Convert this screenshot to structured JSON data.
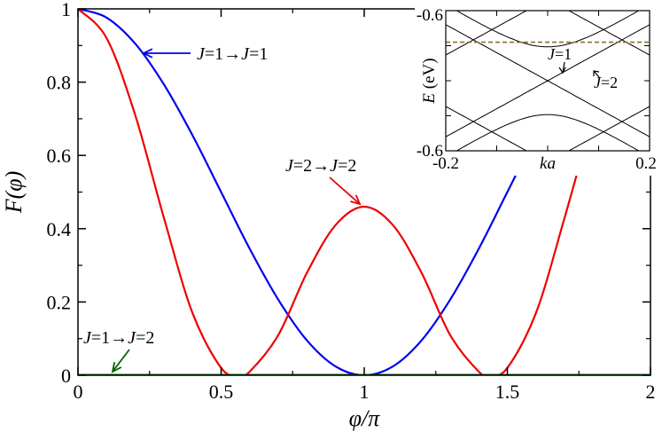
{
  "chart_data": [
    {
      "type": "line",
      "xlabel": "φ/π",
      "ylabel": "F(φ)",
      "xlim": [
        0,
        2
      ],
      "ylim": [
        0,
        1
      ],
      "x_ticks": [
        0,
        0.5,
        1,
        1.5,
        2
      ],
      "x_tick_labels": [
        "0",
        "0.5",
        "1",
        "1.5",
        "2"
      ],
      "y_ticks": [
        0,
        0.2,
        0.4,
        0.6,
        0.8,
        1
      ],
      "y_tick_labels": [
        "0",
        "0.2",
        "0.4",
        "0.6",
        "0.8",
        "1"
      ],
      "grid": false,
      "series": [
        {
          "name": "J=1→J=1",
          "color": "#0000ee",
          "x": [
            0,
            0.1,
            0.2,
            0.3,
            0.4,
            0.5,
            0.6,
            0.7,
            0.8,
            0.9,
            1.0,
            1.1,
            1.2,
            1.3,
            1.4,
            1.5,
            1.6,
            1.7,
            1.8,
            1.9,
            2.0
          ],
          "y": [
            1.0,
            0.976,
            0.905,
            0.794,
            0.655,
            0.5,
            0.345,
            0.206,
            0.095,
            0.024,
            0.0,
            0.024,
            0.095,
            0.206,
            0.345,
            0.5,
            0.655,
            0.794,
            0.905,
            0.976,
            1.0
          ]
        },
        {
          "name": "J=2→J=2",
          "color": "#ee0000",
          "x": [
            0,
            0.1,
            0.2,
            0.3,
            0.4,
            0.5,
            0.56,
            0.6,
            0.7,
            0.8,
            0.9,
            1.0,
            1.1,
            1.2,
            1.3,
            1.4,
            1.44,
            1.5,
            1.6,
            1.7,
            1.8
          ],
          "y": [
            1.0,
            0.92,
            0.71,
            0.43,
            0.17,
            0.02,
            0.0,
            0.01,
            0.11,
            0.28,
            0.41,
            0.46,
            0.41,
            0.28,
            0.11,
            0.01,
            0.0,
            0.02,
            0.17,
            0.43,
            0.71
          ]
        },
        {
          "name": "J=1→J=2",
          "color": "#006400",
          "x": [
            0,
            2
          ],
          "y": [
            0,
            0
          ]
        }
      ],
      "annotations": [
        {
          "parts": [
            [
              "J",
              true
            ],
            [
              "=1→",
              false
            ],
            [
              "J",
              true
            ],
            [
              "=1",
              false
            ]
          ],
          "points_to": [
            0.87,
            0.88
          ]
        },
        {
          "parts": [
            [
              "J",
              true
            ],
            [
              "=2→",
              false
            ],
            [
              "J",
              true
            ],
            [
              "=2",
              false
            ]
          ],
          "points_to": [
            1.0,
            0.47
          ]
        },
        {
          "parts": [
            [
              "J",
              true
            ],
            [
              "=1→",
              false
            ],
            [
              "J",
              true
            ],
            [
              "=2",
              false
            ]
          ],
          "points_to": [
            0.1,
            0.0
          ]
        }
      ]
    },
    {
      "type": "line",
      "xlabel": "ka",
      "ylabel": "E (eV)",
      "xlim": [
        -0.2,
        0.2
      ],
      "ylim": [
        -0.6,
        0.6
      ],
      "x_tick_labels": [
        "-0.2",
        "0.2"
      ],
      "y_tick_labels": [
        "-0.6",
        "-0.6"
      ],
      "fermi_level": 0.33,
      "crossing_energy": 0.0,
      "annotations": [
        "J=1",
        "J=2"
      ]
    }
  ]
}
